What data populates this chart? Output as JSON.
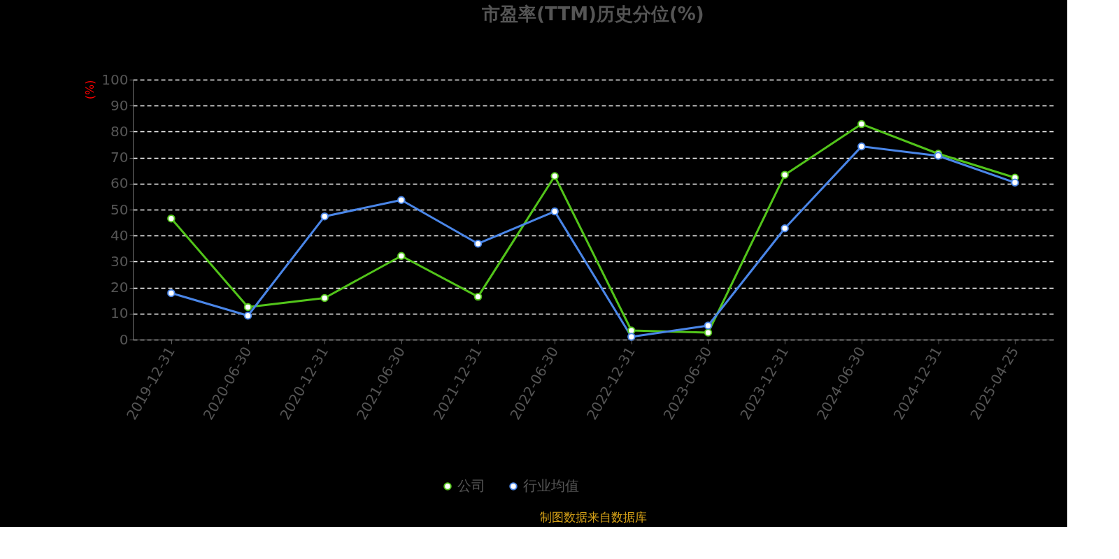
{
  "chart_data": {
    "type": "line",
    "title": "市盈率(TTM)历史分位(%)",
    "ylabel": "(%)",
    "categories": [
      "2019-12-31",
      "2020-06-30",
      "2020-12-31",
      "2021-06-30",
      "2021-12-31",
      "2022-06-30",
      "2022-12-31",
      "2023-06-30",
      "2023-12-31",
      "2024-06-30",
      "2024-12-31",
      "2025-04-25"
    ],
    "series": [
      {
        "name": "公司",
        "color": "#52c41a",
        "values": [
          46.6,
          12.5,
          16.0,
          32.2,
          16.5,
          62.9,
          3.5,
          2.7,
          63.4,
          82.9,
          71.5,
          62.3
        ]
      },
      {
        "name": "行业均值",
        "color": "#4a86e8",
        "values": [
          17.9,
          9.2,
          47.4,
          53.7,
          36.9,
          49.3,
          1.1,
          5.4,
          42.8,
          74.3,
          70.7,
          60.4
        ]
      }
    ],
    "ylim": [
      0,
      100
    ],
    "yticks": [
      0,
      10,
      20,
      30,
      40,
      50,
      60,
      70,
      80,
      90,
      100
    ],
    "grid": "y",
    "legend": "bottom",
    "marker": "circle",
    "line_style": "solid",
    "annotations": [
      "制图数据来自数据库"
    ]
  }
}
